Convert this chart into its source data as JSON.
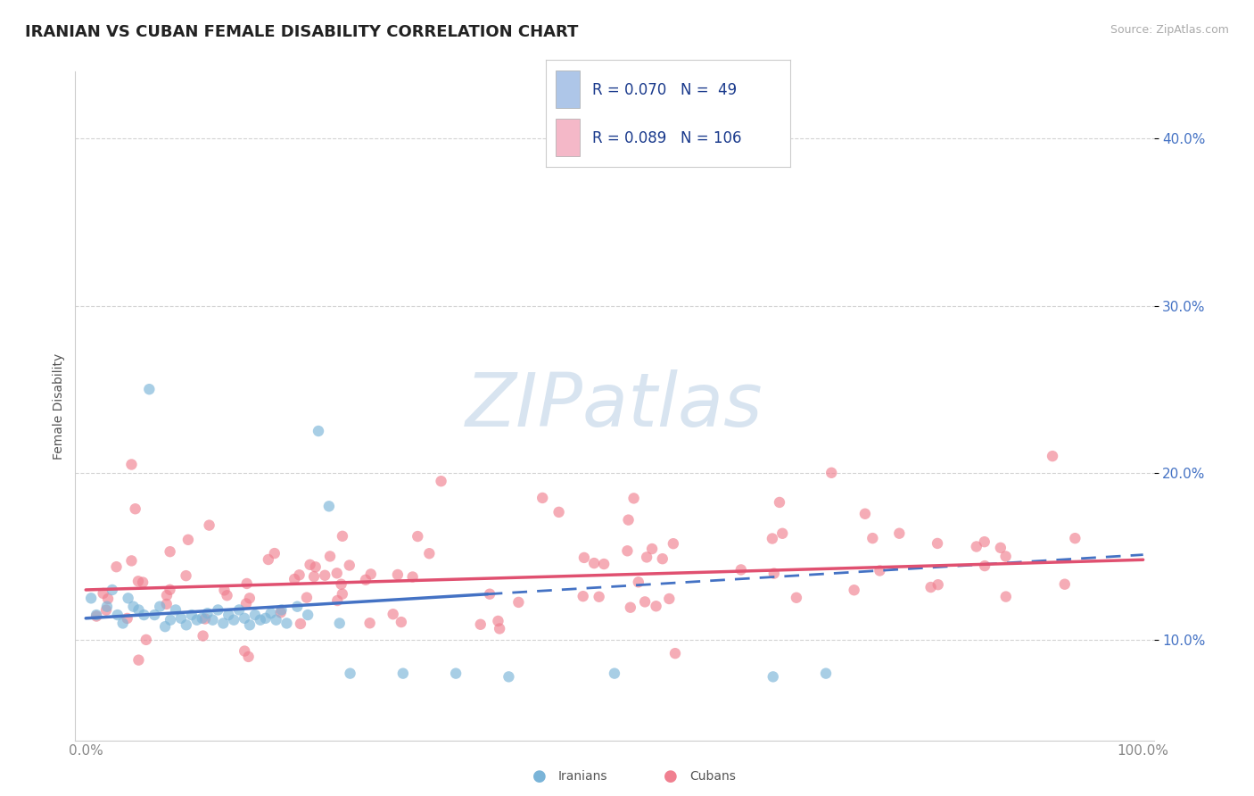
{
  "title": "IRANIAN VS CUBAN FEMALE DISABILITY CORRELATION CHART",
  "source": "Source: ZipAtlas.com",
  "ylabel": "Female Disability",
  "legend_iranian": {
    "R": 0.07,
    "N": 49,
    "color": "#aec6e8"
  },
  "legend_cuban": {
    "R": 0.089,
    "N": 106,
    "color": "#f4b8c8"
  },
  "iranian_color": "#7ab4d8",
  "cuban_color": "#f08090",
  "trend_iranian_color": "#4472c4",
  "trend_cuban_color": "#e05070",
  "watermark_color": "#d8e4f0",
  "background_color": "#ffffff",
  "grid_color": "#c8c8c8",
  "title_color": "#222222",
  "legend_text_color": "#1a3a8c",
  "ytick_color": "#4472c4",
  "iranians_label": "Iranians",
  "cubans_label": "Cubans"
}
